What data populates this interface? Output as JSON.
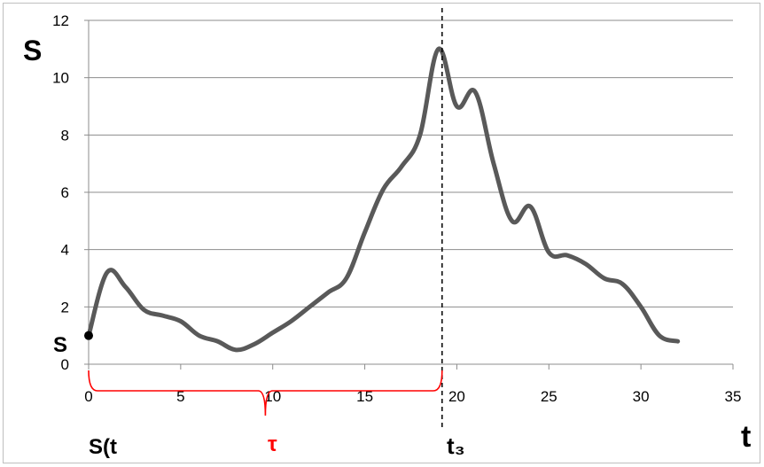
{
  "chart_data": {
    "type": "line",
    "title": "",
    "ylabel": "S",
    "xlabel": "t",
    "xlim": [
      0,
      35
    ],
    "ylim": [
      0,
      12
    ],
    "x_ticks": [
      0,
      5,
      10,
      15,
      20,
      25,
      30,
      35
    ],
    "y_ticks": [
      0,
      2,
      4,
      6,
      8,
      10,
      12
    ],
    "x_tick_labels": [
      "0",
      "5",
      "10",
      "15",
      "20",
      "25",
      "30",
      "35"
    ],
    "y_tick_labels": [
      "0",
      "2",
      "4",
      "6",
      "8",
      "10",
      "12"
    ],
    "grid": "horizontal",
    "series": [
      {
        "color": "#595959",
        "x": [
          0,
          1,
          2,
          3,
          4,
          5,
          6,
          7,
          8,
          9,
          10,
          11,
          12,
          13,
          14,
          15,
          16,
          17,
          18,
          19,
          20,
          21,
          22,
          23,
          24,
          25,
          26,
          27,
          28,
          29,
          30,
          31,
          32
        ],
        "y": [
          1.0,
          3.2,
          2.7,
          1.9,
          1.7,
          1.5,
          1.0,
          0.8,
          0.5,
          0.7,
          1.1,
          1.5,
          2.0,
          2.5,
          3.0,
          4.6,
          6.1,
          6.9,
          8.0,
          11.0,
          9.0,
          9.5,
          7.0,
          5.0,
          5.5,
          3.9,
          3.8,
          3.5,
          3.0,
          2.8,
          2.0,
          1.0,
          0.8
        ]
      }
    ],
    "start_marker": {
      "x": 0,
      "y": 1.0,
      "label": "S"
    },
    "vertical_line": {
      "x": 19.2,
      "style": "dashed",
      "label": "t₃"
    },
    "brace": {
      "x_start": 0,
      "x_end": 19.2,
      "label": "τ",
      "color": "#ff0000"
    },
    "start_label": "S(t",
    "tau_label": "τ",
    "t3_label": "t₃"
  }
}
